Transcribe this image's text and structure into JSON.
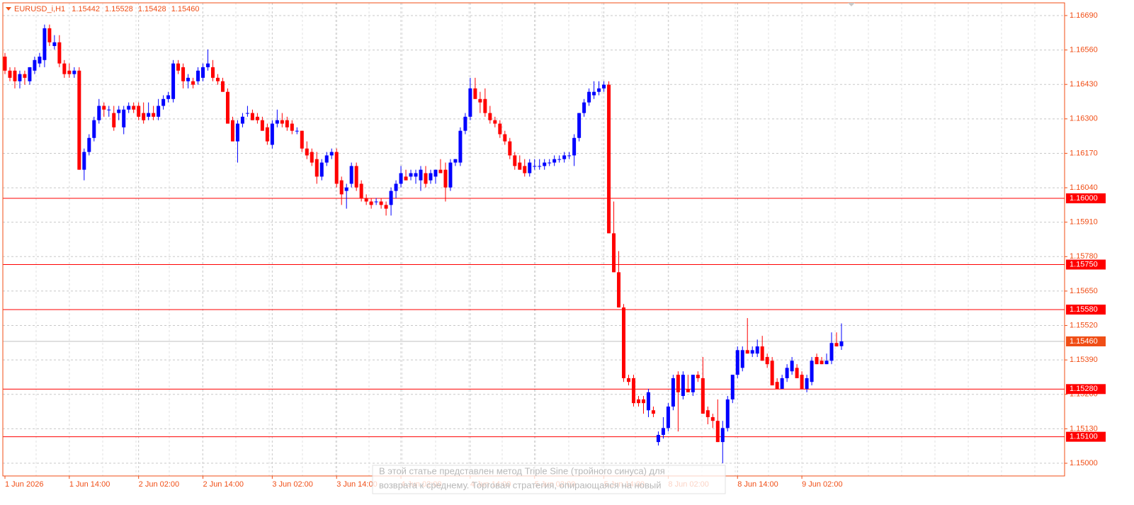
{
  "chart_data": {
    "type": "candlestick",
    "symbol": "EURUSD_i,H1",
    "colors": {
      "up": "#0000ff",
      "down": "#ff0000"
    },
    "grid": true,
    "ylim": [
      1.14952,
      1.16738
    ],
    "yticks": [
      {
        "value": 1.1669,
        "label": "1.16690"
      },
      {
        "value": 1.1656,
        "label": "1.16560"
      },
      {
        "value": 1.1643,
        "label": "1.16430"
      },
      {
        "value": 1.163,
        "label": "1.16300"
      },
      {
        "value": 1.1617,
        "label": "1.16170"
      },
      {
        "value": 1.1604,
        "label": "1.16040"
      },
      {
        "value": 1.1591,
        "label": "1.15910"
      },
      {
        "value": 1.1578,
        "label": "1.15780"
      },
      {
        "value": 1.1565,
        "label": "1.15650"
      },
      {
        "value": 1.1552,
        "label": "1.15520"
      },
      {
        "value": 1.1539,
        "label": "1.15390"
      },
      {
        "value": 1.1526,
        "label": "1.15260"
      },
      {
        "value": 1.1513,
        "label": "1.15130"
      },
      {
        "value": 1.15,
        "label": "1.15000"
      }
    ],
    "levels": [
      {
        "value": 1.16,
        "label": "1.16000"
      },
      {
        "value": 1.1575,
        "label": "1.15750"
      },
      {
        "value": 1.1558,
        "label": "1.15580"
      },
      {
        "value": 1.1528,
        "label": "1.15280"
      },
      {
        "value": 1.151,
        "label": "1.15100"
      }
    ],
    "bid": {
      "value": 1.1546,
      "label": "1.15460"
    },
    "categories": [
      "1 Jun 2026",
      null,
      null,
      null,
      null,
      null,
      null,
      null,
      null,
      null,
      null,
      null,
      null,
      "1 Jun 14:00",
      null,
      null,
      null,
      null,
      null,
      null,
      null,
      null,
      null,
      null,
      null,
      null,
      null,
      "2 Jun 02:00",
      null,
      null,
      null,
      null,
      null,
      null,
      null,
      null,
      null,
      null,
      null,
      null,
      "2 Jun 14:00",
      null,
      null,
      null,
      null,
      null,
      null,
      null,
      null,
      null,
      null,
      null,
      null,
      null,
      "3 Jun 02:00",
      null,
      null,
      null,
      null,
      null,
      null,
      null,
      null,
      null,
      null,
      null,
      null,
      "3 Jun 14:00",
      null,
      null,
      null,
      null,
      null,
      null,
      null,
      null,
      null,
      null,
      null,
      null,
      "4 Jun 02:00",
      null,
      null,
      null,
      null,
      null,
      null,
      null,
      null,
      null,
      null,
      null,
      null,
      null,
      "4 Jun 14:00",
      null,
      null,
      null,
      null,
      null,
      null,
      null,
      null,
      null,
      null,
      null,
      null,
      "5 Jun 02:00",
      null,
      null,
      null,
      null,
      null,
      null,
      null,
      null,
      null,
      null,
      null,
      null,
      null,
      "5 Jun 14:00",
      null,
      null,
      null,
      null,
      null,
      null,
      null,
      null,
      null,
      null,
      null,
      null,
      "8 Jun 02:00",
      null,
      null,
      null,
      null,
      null,
      null,
      null,
      null,
      null,
      null,
      null,
      null,
      null,
      "8 Jun 14:00",
      null,
      null,
      null,
      null,
      null,
      null,
      null,
      null,
      null,
      null,
      null,
      null,
      "9 Jun 02:00",
      null,
      null,
      null,
      null,
      null,
      null,
      null,
      null
    ],
    "candles": [
      [
        1.16535,
        1.16549,
        1.16469,
        1.16482
      ],
      [
        1.16482,
        1.16495,
        1.16442,
        1.16455
      ],
      [
        1.16482,
        1.16495,
        1.16415,
        1.16442
      ],
      [
        1.16442,
        1.16482,
        1.16415,
        1.16469
      ],
      [
        1.16469,
        1.16482,
        1.16429,
        1.16455
      ],
      [
        1.16442,
        1.16495,
        1.16429,
        1.16495
      ],
      [
        1.16482,
        1.16535,
        1.16469,
        1.16522
      ],
      [
        1.16509,
        1.16549,
        1.16495,
        1.16535
      ],
      [
        1.16522,
        1.16656,
        1.16495,
        1.16642
      ],
      [
        1.16642,
        1.16656,
        1.16575,
        1.16589
      ],
      [
        1.16575,
        1.16616,
        1.16562,
        1.16589
      ],
      [
        1.16589,
        1.16616,
        1.16495,
        1.16509
      ],
      [
        1.16509,
        1.16522,
        1.16455,
        1.16469
      ],
      [
        1.16482,
        1.16509,
        1.16455,
        1.16469
      ],
      [
        1.16469,
        1.16495,
        1.16455,
        1.16482
      ],
      [
        1.16482,
        1.16495,
        1.16108,
        1.16108
      ],
      [
        1.16108,
        1.16188,
        1.16068,
        1.16175
      ],
      [
        1.16175,
        1.16242,
        1.16162,
        1.16228
      ],
      [
        1.16228,
        1.16308,
        1.16215,
        1.16295
      ],
      [
        1.16295,
        1.16375,
        1.16282,
        1.16349
      ],
      [
        1.16349,
        1.16362,
        1.16308,
        1.16335
      ],
      [
        1.16335,
        1.16349,
        1.16308,
        1.16335
      ],
      [
        1.16322,
        1.16349,
        1.16255,
        1.16268
      ],
      [
        1.16322,
        1.16349,
        1.16295,
        1.16335
      ],
      [
        1.16268,
        1.16349,
        1.16242,
        1.16335
      ],
      [
        1.16335,
        1.16362,
        1.16322,
        1.16349
      ],
      [
        1.16349,
        1.16362,
        1.16322,
        1.16335
      ],
      [
        1.16349,
        1.16362,
        1.16295,
        1.16308
      ],
      [
        1.16322,
        1.16362,
        1.16282,
        1.16295
      ],
      [
        1.16308,
        1.16362,
        1.16295,
        1.16322
      ],
      [
        1.16322,
        1.16349,
        1.16295,
        1.16308
      ],
      [
        1.16308,
        1.16375,
        1.16295,
        1.16349
      ],
      [
        1.16349,
        1.16389,
        1.16335,
        1.16375
      ],
      [
        1.16375,
        1.16402,
        1.16362,
        1.16389
      ],
      [
        1.16375,
        1.16522,
        1.16362,
        1.16509
      ],
      [
        1.16509,
        1.16522,
        1.16469,
        1.16482
      ],
      [
        1.16495,
        1.16509,
        1.16415,
        1.16442
      ],
      [
        1.16442,
        1.16469,
        1.16415,
        1.16455
      ],
      [
        1.16442,
        1.16455,
        1.16415,
        1.16429
      ],
      [
        1.16442,
        1.16495,
        1.16429,
        1.16482
      ],
      [
        1.16455,
        1.16509,
        1.16442,
        1.16495
      ],
      [
        1.16495,
        1.16562,
        1.16482,
        1.16509
      ],
      [
        1.16495,
        1.16522,
        1.16442,
        1.16455
      ],
      [
        1.16455,
        1.16469,
        1.16429,
        1.16442
      ],
      [
        1.16442,
        1.16455,
        1.16402,
        1.16402
      ],
      [
        1.16402,
        1.16415,
        1.16282,
        1.16282
      ],
      [
        1.16295,
        1.16308,
        1.16215,
        1.16215
      ],
      [
        1.16215,
        1.16295,
        1.16135,
        1.16282
      ],
      [
        1.16282,
        1.16322,
        1.16268,
        1.16308
      ],
      [
        1.16322,
        1.16349,
        1.16308,
        1.16322
      ],
      [
        1.16322,
        1.16335,
        1.16295,
        1.16295
      ],
      [
        1.16308,
        1.16322,
        1.16282,
        1.16295
      ],
      [
        1.16295,
        1.16308,
        1.16255,
        1.16255
      ],
      [
        1.16268,
        1.16282,
        1.16202,
        1.16215
      ],
      [
        1.16202,
        1.16295,
        1.16188,
        1.16282
      ],
      [
        1.16282,
        1.16335,
        1.16268,
        1.16295
      ],
      [
        1.16295,
        1.16322,
        1.16268,
        1.16282
      ],
      [
        1.16295,
        1.16308,
        1.16255,
        1.16268
      ],
      [
        1.16282,
        1.16295,
        1.16242,
        1.16255
      ],
      [
        1.16255,
        1.16268,
        1.16242,
        1.16255
      ],
      [
        1.16255,
        1.16255,
        1.16175,
        1.16188
      ],
      [
        1.16188,
        1.16215,
        1.16148,
        1.16162
      ],
      [
        1.16175,
        1.16188,
        1.16122,
        1.16135
      ],
      [
        1.16148,
        1.16175,
        1.16055,
        1.16082
      ],
      [
        1.16082,
        1.16148,
        1.16068,
        1.16135
      ],
      [
        1.16135,
        1.16175,
        1.16122,
        1.16162
      ],
      [
        1.16162,
        1.16188,
        1.16148,
        1.16175
      ],
      [
        1.16175,
        1.16188,
        1.16041,
        1.16055
      ],
      [
        1.16068,
        1.16082,
        1.15975,
        1.16015
      ],
      [
        1.16028,
        1.16055,
        1.15961,
        1.16041
      ],
      [
        1.16055,
        1.16135,
        1.16041,
        1.16122
      ],
      [
        1.16122,
        1.16135,
        1.16028,
        1.16041
      ],
      [
        1.16055,
        1.16068,
        1.15988,
        1.16001
      ],
      [
        1.16001,
        1.16015,
        1.15975,
        1.15988
      ],
      [
        1.15988,
        1.16001,
        1.15961,
        1.15975
      ],
      [
        1.15988,
        1.16001,
        1.15975,
        1.15988
      ],
      [
        1.15988,
        1.16001,
        1.15961,
        1.15975
      ],
      [
        1.15975,
        1.15988,
        1.15935,
        1.15961
      ],
      [
        1.15975,
        1.16041,
        1.15935,
        1.16028
      ],
      [
        1.16028,
        1.16068,
        1.16001,
        1.16055
      ],
      [
        1.16055,
        1.16122,
        1.16041,
        1.16095
      ],
      [
        1.16082,
        1.16108,
        1.16068,
        1.16068
      ],
      [
        1.16082,
        1.16108,
        1.16068,
        1.16095
      ],
      [
        1.16082,
        1.16108,
        1.16055,
        1.16095
      ],
      [
        1.16068,
        1.16122,
        1.16028,
        1.16108
      ],
      [
        1.16095,
        1.16122,
        1.16041,
        1.16055
      ],
      [
        1.16068,
        1.16108,
        1.16055,
        1.16095
      ],
      [
        1.16082,
        1.16108,
        1.16055,
        1.16108
      ],
      [
        1.16108,
        1.16148,
        1.16095,
        1.16095
      ],
      [
        1.16108,
        1.16135,
        1.15988,
        1.16041
      ],
      [
        1.16041,
        1.16148,
        1.16028,
        1.16135
      ],
      [
        1.16135,
        1.16148,
        1.16122,
        1.16148
      ],
      [
        1.16135,
        1.16268,
        1.16122,
        1.16255
      ],
      [
        1.16255,
        1.16322,
        1.16242,
        1.16308
      ],
      [
        1.16308,
        1.16455,
        1.16295,
        1.16415
      ],
      [
        1.16415,
        1.16455,
        1.16375,
        1.16375
      ],
      [
        1.16375,
        1.16402,
        1.16322,
        1.16362
      ],
      [
        1.16375,
        1.16415,
        1.16308,
        1.16322
      ],
      [
        1.16322,
        1.16349,
        1.16282,
        1.16295
      ],
      [
        1.16295,
        1.16308,
        1.16268,
        1.16282
      ],
      [
        1.16282,
        1.16295,
        1.16228,
        1.16242
      ],
      [
        1.16242,
        1.16255,
        1.16202,
        1.16215
      ],
      [
        1.16215,
        1.16228,
        1.16148,
        1.16162
      ],
      [
        1.16162,
        1.16175,
        1.16108,
        1.16122
      ],
      [
        1.16135,
        1.16162,
        1.16108,
        1.16108
      ],
      [
        1.16122,
        1.16148,
        1.16082,
        1.16095
      ],
      [
        1.16095,
        1.16148,
        1.16082,
        1.16135
      ],
      [
        1.16122,
        1.16148,
        1.16108,
        1.16122
      ],
      [
        1.16122,
        1.16148,
        1.16108,
        1.16122
      ],
      [
        1.16122,
        1.16148,
        1.16108,
        1.16135
      ],
      [
        1.16135,
        1.16148,
        1.16122,
        1.16135
      ],
      [
        1.16135,
        1.16162,
        1.16122,
        1.16148
      ],
      [
        1.16148,
        1.16162,
        1.16135,
        1.16148
      ],
      [
        1.16148,
        1.16175,
        1.16135,
        1.16162
      ],
      [
        1.16162,
        1.16175,
        1.16148,
        1.16162
      ],
      [
        1.16162,
        1.16242,
        1.16122,
        1.16228
      ],
      [
        1.16228,
        1.16322,
        1.16215,
        1.16322
      ],
      [
        1.16322,
        1.16375,
        1.16308,
        1.16362
      ],
      [
        1.16362,
        1.16415,
        1.16349,
        1.16402
      ],
      [
        1.16389,
        1.16442,
        1.16375,
        1.16402
      ],
      [
        1.16402,
        1.16442,
        1.16389,
        1.16415
      ],
      [
        1.16415,
        1.16442,
        1.16402,
        1.16429
      ],
      [
        1.16429,
        1.16442,
        1.15868,
        1.15868
      ],
      [
        1.15868,
        1.15988,
        1.15721,
        1.15721
      ],
      [
        1.15721,
        1.15801,
        1.15588,
        1.15588
      ],
      [
        1.15588,
        1.15601,
        1.15307,
        1.15321
      ],
      [
        1.15321,
        1.15334,
        1.15294,
        1.15307
      ],
      [
        1.15321,
        1.15334,
        1.15214,
        1.15227
      ],
      [
        1.15241,
        1.15254,
        1.15214,
        1.15227
      ],
      [
        1.15241,
        1.15254,
        1.15187,
        1.15227
      ],
      [
        1.152,
        1.15281,
        1.15174,
        1.15268
      ],
      [
        1.152,
        1.15214,
        1.15174,
        1.15187
      ],
      [
        1.1508,
        1.1512,
        1.15067,
        1.15107
      ],
      [
        1.15107,
        1.15174,
        1.15093,
        1.15133
      ],
      [
        1.15133,
        1.15227,
        1.1512,
        1.15214
      ],
      [
        1.15214,
        1.15334,
        1.152,
        1.15321
      ],
      [
        1.15334,
        1.15347,
        1.1512,
        1.15268
      ],
      [
        1.15254,
        1.15347,
        1.15241,
        1.15334
      ],
      [
        1.15281,
        1.15334,
        1.15268,
        1.15268
      ],
      [
        1.15268,
        1.15334,
        1.15254,
        1.15334
      ],
      [
        1.15334,
        1.15347,
        1.15307,
        1.15321
      ],
      [
        1.15321,
        1.15401,
        1.15187,
        1.15187
      ],
      [
        1.152,
        1.15214,
        1.15147,
        1.15174
      ],
      [
        1.15174,
        1.15187,
        1.15133,
        1.1516
      ],
      [
        1.1516,
        1.15241,
        1.1508,
        1.1508
      ],
      [
        1.1508,
        1.1516,
        1.15,
        1.15133
      ],
      [
        1.15133,
        1.15254,
        1.1512,
        1.15241
      ],
      [
        1.15241,
        1.15334,
        1.15227,
        1.15334
      ],
      [
        1.15334,
        1.15441,
        1.15321,
        1.15427
      ],
      [
        1.1536,
        1.15441,
        1.15347,
        1.15427
      ],
      [
        1.15427,
        1.15548,
        1.15414,
        1.15414
      ],
      [
        1.15414,
        1.15441,
        1.15401,
        1.15427
      ],
      [
        1.15414,
        1.15467,
        1.15401,
        1.15441
      ],
      [
        1.15441,
        1.15481,
        1.15387,
        1.15387
      ],
      [
        1.15401,
        1.15414,
        1.1536,
        1.15374
      ],
      [
        1.15387,
        1.15401,
        1.15294,
        1.15294
      ],
      [
        1.15307,
        1.15321,
        1.15281,
        1.15281
      ],
      [
        1.15281,
        1.15334,
        1.15281,
        1.15321
      ],
      [
        1.15321,
        1.15374,
        1.15307,
        1.1536
      ],
      [
        1.15347,
        1.15401,
        1.15334,
        1.15387
      ],
      [
        1.1536,
        1.15374,
        1.15321,
        1.15321
      ],
      [
        1.15334,
        1.15347,
        1.15281,
        1.15281
      ],
      [
        1.15281,
        1.15334,
        1.15268,
        1.15321
      ],
      [
        1.15307,
        1.15401,
        1.15294,
        1.15387
      ],
      [
        1.15401,
        1.15414,
        1.15374,
        1.15374
      ],
      [
        1.15387,
        1.15401,
        1.15374,
        1.15374
      ],
      [
        1.15374,
        1.15414,
        1.15374,
        1.15387
      ],
      [
        1.15387,
        1.15494,
        1.15374,
        1.15454
      ],
      [
        1.15454,
        1.15494,
        1.15441,
        1.15441
      ],
      [
        1.15442,
        1.15528,
        1.15428,
        1.1546
      ]
    ]
  },
  "tooltip": {
    "lines": [
      "В этой статье представлен метод Triple Sine (тройного синуса) для",
      "возврата к среднему. Торговая стратегия, опирающаяся на новый"
    ]
  }
}
